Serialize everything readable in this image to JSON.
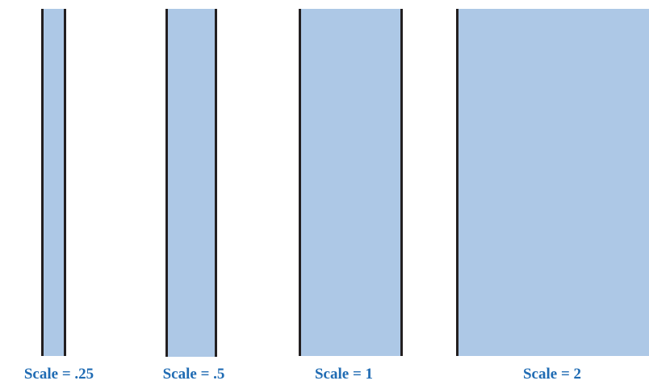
{
  "colors": {
    "fill": "#adc8e6",
    "edge": "#231f20",
    "caption": "#1f6bb3"
  },
  "panels": [
    {
      "label": "Scale = .25",
      "scale": 0.25
    },
    {
      "label": "Scale = .5",
      "scale": 0.5
    },
    {
      "label": "Scale = 1",
      "scale": 1
    },
    {
      "label": "Scale = 2",
      "scale": 2
    }
  ]
}
